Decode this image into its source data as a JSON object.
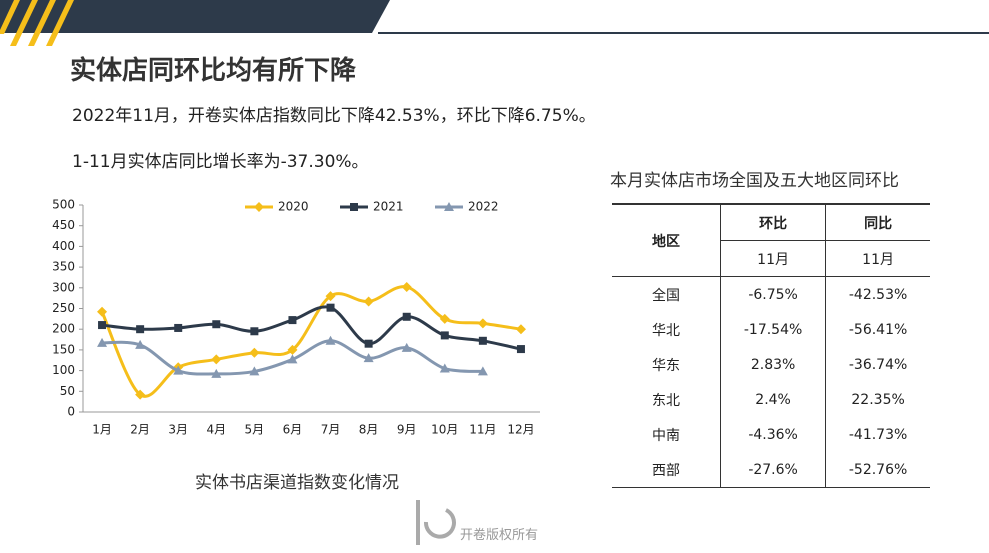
{
  "header": {
    "title": "实体店同环比均有所下降",
    "line1": "2022年11月，开卷实体店指数同比下降42.53%，环比下降6.75%。",
    "line2": "1-11月实体店同比增长率为-37.30%。"
  },
  "chart_data": {
    "type": "line",
    "categories": [
      "1月",
      "2月",
      "3月",
      "4月",
      "5月",
      "6月",
      "7月",
      "8月",
      "9月",
      "10月",
      "11月",
      "12月"
    ],
    "series": [
      {
        "name": "2020",
        "color": "#f5be1a",
        "marker": "diamond",
        "values": [
          242,
          42,
          108,
          127,
          143,
          150,
          280,
          267,
          302,
          225,
          214,
          200
        ]
      },
      {
        "name": "2021",
        "color": "#2d3a4a",
        "marker": "square",
        "values": [
          210,
          200,
          203,
          212,
          195,
          222,
          252,
          165,
          230,
          185,
          172,
          152
        ]
      },
      {
        "name": "2022",
        "color": "#8497b0",
        "marker": "triangle",
        "values": [
          167,
          162,
          100,
          92,
          98,
          127,
          172,
          130,
          155,
          105,
          98,
          null
        ]
      }
    ],
    "ylim": [
      0,
      500
    ],
    "yticks": [
      0,
      50,
      100,
      150,
      200,
      250,
      300,
      350,
      400,
      450,
      500
    ],
    "legend": "top",
    "smooth": true
  },
  "caption": "实体书店渠道指数变化情况",
  "table": {
    "title": "本月实体店市场全国及五大地区同环比",
    "header": [
      "地区",
      "环比",
      "同比"
    ],
    "subheader": [
      "11月",
      "11月"
    ],
    "rows": [
      [
        "全国",
        "-6.75%",
        "-42.53%"
      ],
      [
        "华北",
        "-17.54%",
        "-56.41%"
      ],
      [
        "华东",
        "2.83%",
        "-36.74%"
      ],
      [
        "东北",
        "2.4%",
        "22.35%"
      ],
      [
        "中南",
        "-4.36%",
        "-41.73%"
      ],
      [
        "西部",
        "-27.6%",
        "-52.76%"
      ]
    ]
  },
  "footer": "开卷版权所有"
}
